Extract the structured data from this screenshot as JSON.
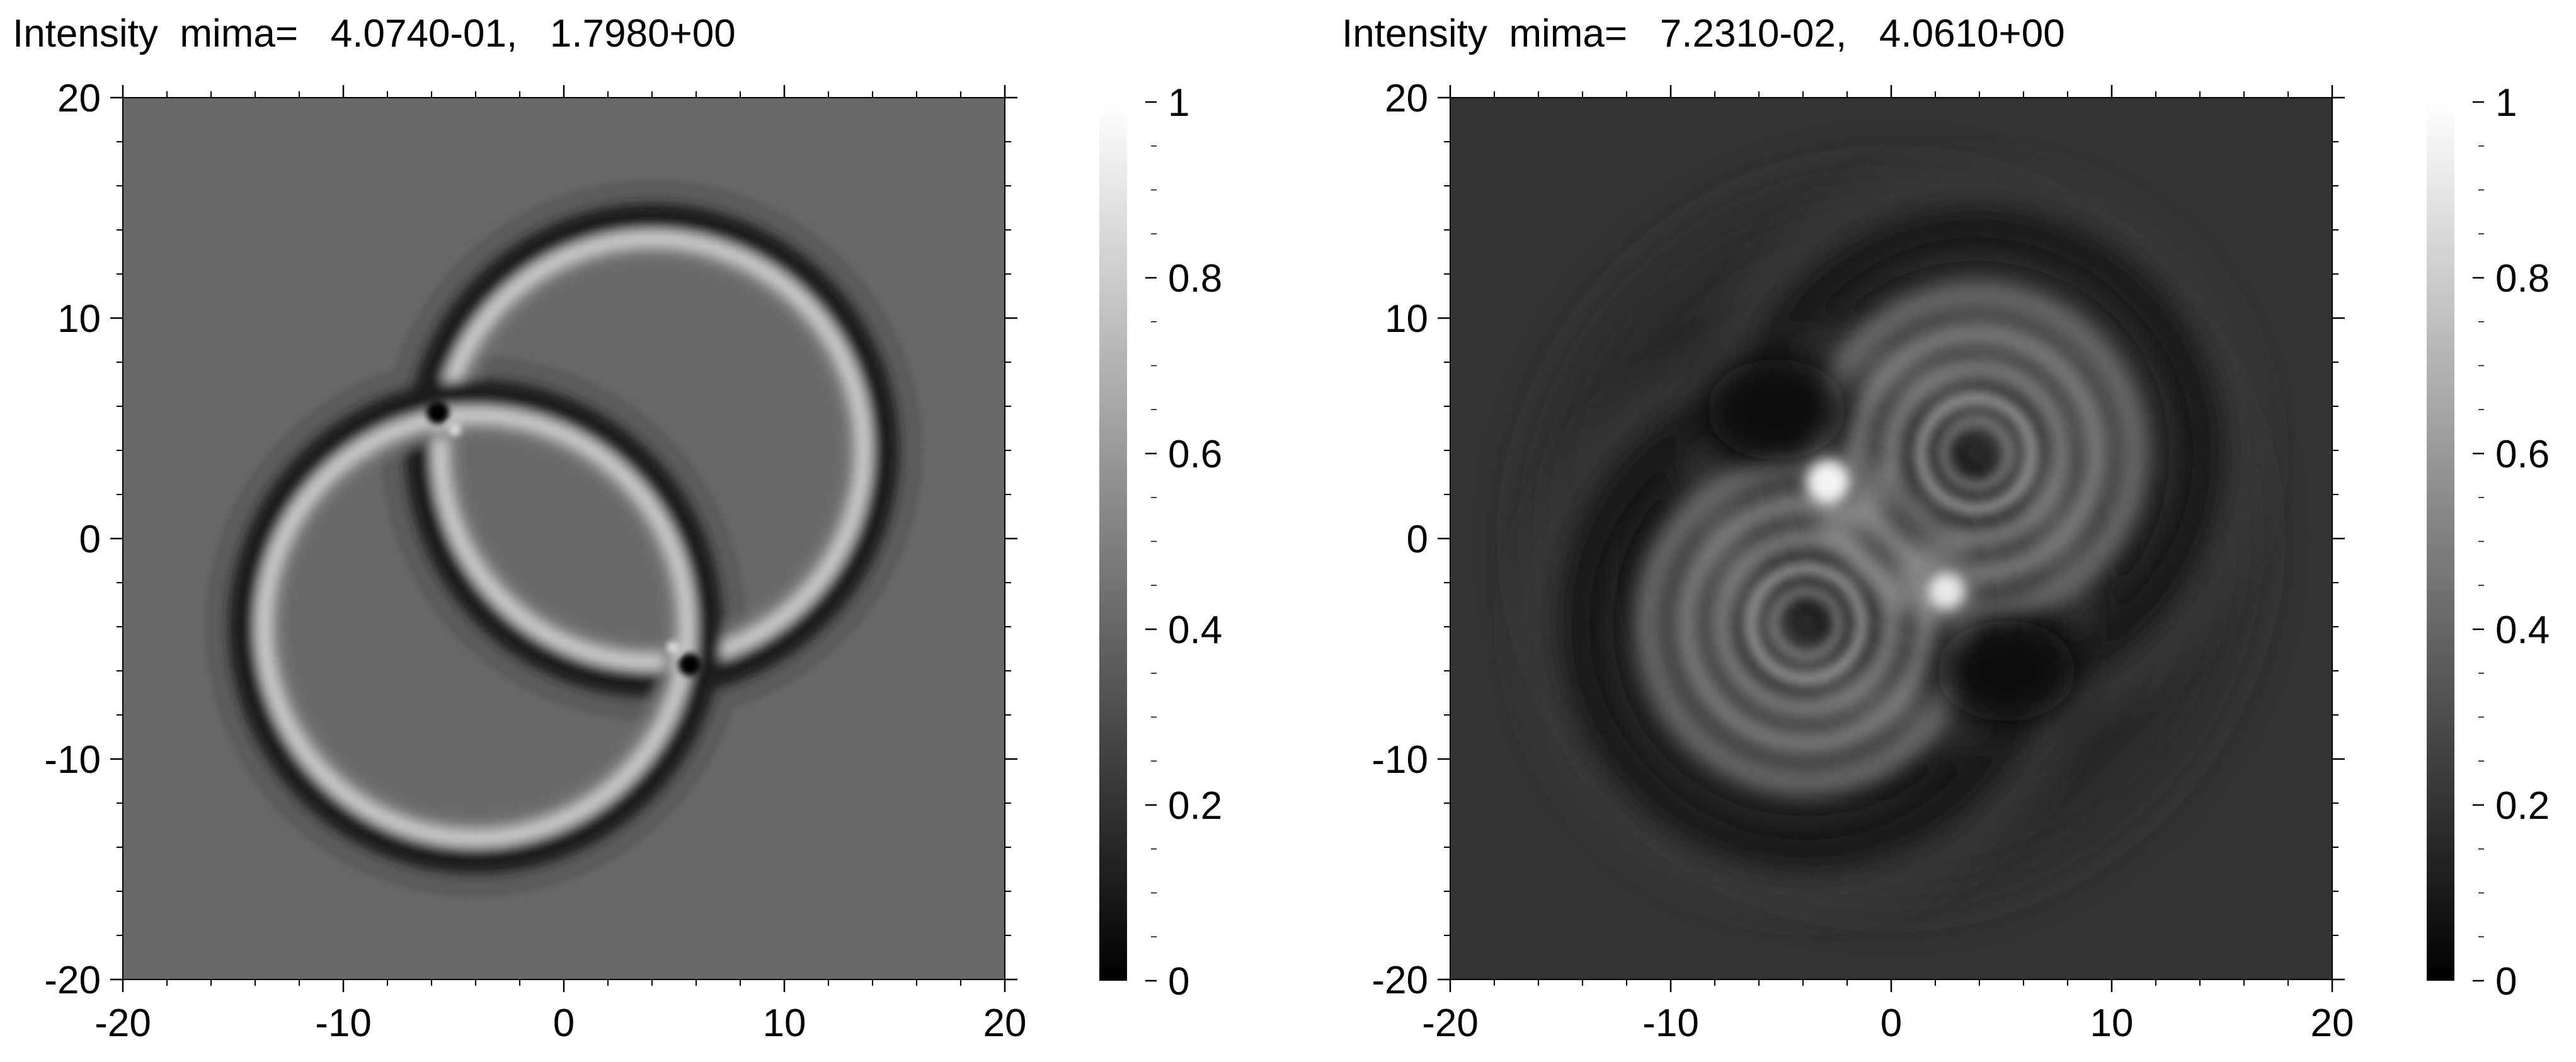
{
  "chart_data": [
    {
      "type": "heatmap",
      "title": "Intensity  mima=   4.0740-01,   1.7980+00",
      "colormap": "grayscale",
      "xlim": [
        -20,
        20
      ],
      "ylim": [
        -20,
        20
      ],
      "xticks": [
        -20,
        -10,
        0,
        10,
        20
      ],
      "yticks": [
        -20,
        -10,
        0,
        10,
        20
      ],
      "colorbar": {
        "range": [
          0,
          1
        ],
        "ticks": [
          0,
          0.2,
          0.4,
          0.6,
          0.8,
          1
        ],
        "tick_labels": [
          "0",
          "0.2",
          "0.4",
          "0.6",
          "0.8",
          "1"
        ]
      },
      "background_level": 0.4,
      "features": [
        {
          "shape": "ring",
          "center": [
            4,
            4
          ],
          "radius": 10,
          "tone": "dark outer band, bright inner band"
        },
        {
          "shape": "ring",
          "center": [
            -4,
            -4
          ],
          "radius": 10,
          "tone": "dark outer band, bright inner band"
        },
        {
          "shape": "dark spot",
          "center": [
            -5.6,
            5.6
          ]
        },
        {
          "shape": "dark spot",
          "center": [
            5.6,
            -5.6
          ]
        }
      ]
    },
    {
      "type": "heatmap",
      "title": "Intensity  mima=   7.2310-02,   4.0610+00",
      "colormap": "grayscale",
      "xlim": [
        -20,
        20
      ],
      "ylim": [
        -20,
        20
      ],
      "xticks": [
        -20,
        -10,
        0,
        10,
        20
      ],
      "yticks": [
        -20,
        -10,
        0,
        10,
        20
      ],
      "colorbar": {
        "range": [
          0,
          1
        ],
        "ticks": [
          0,
          0.2,
          0.4,
          0.6,
          0.8,
          1
        ],
        "tick_labels": [
          "0",
          "0.2",
          "0.4",
          "0.6",
          "0.8",
          "1"
        ]
      },
      "background_level": 0.18,
      "features": [
        {
          "shape": "concentric rings",
          "center": [
            4,
            4
          ]
        },
        {
          "shape": "concentric rings",
          "center": [
            -4,
            -4
          ]
        },
        {
          "shape": "bright spot",
          "center": [
            -1.8,
            2.6
          ]
        },
        {
          "shape": "bright spot",
          "center": [
            2.5,
            -2.4
          ]
        }
      ]
    }
  ]
}
